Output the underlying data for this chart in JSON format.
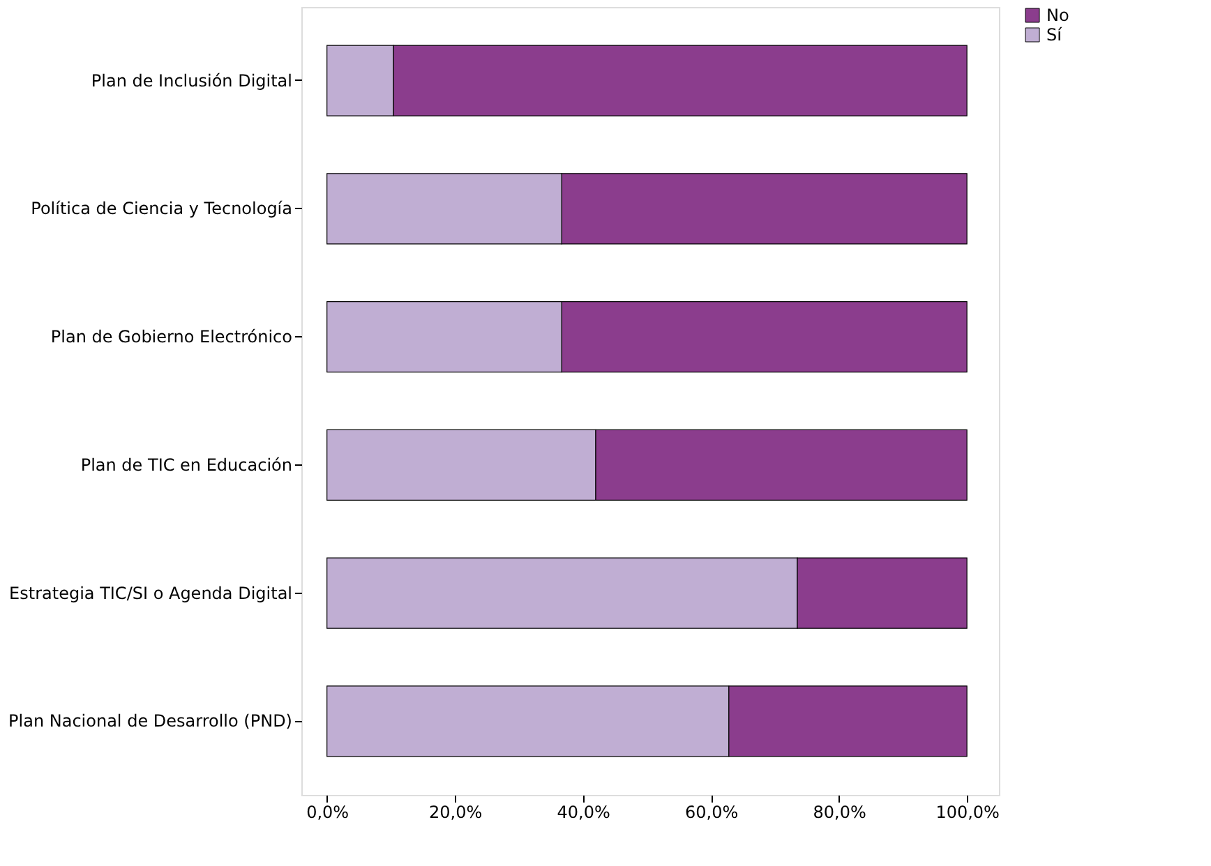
{
  "chart_data": {
    "type": "bar",
    "orientation": "horizontal",
    "stacked": true,
    "categories": [
      "Plan de Inclusión Digital",
      "Política de Ciencia y Tecnología",
      "Plan de Gobierno Electrónico",
      "Plan de TIC en Educación",
      "Estrategia TIC/SI o Agenda Digital",
      "Plan Nacional de Desarrollo (PND)"
    ],
    "series": [
      {
        "name": "Sí",
        "color": "#c0aed3",
        "values": [
          10.4,
          36.7,
          36.7,
          42.0,
          73.5,
          62.8
        ]
      },
      {
        "name": "No",
        "color": "#8b3d8d",
        "values": [
          89.6,
          63.3,
          63.3,
          58.0,
          26.5,
          37.2
        ]
      }
    ],
    "xlim": [
      -4,
      105
    ],
    "xticks": [
      {
        "value": 0,
        "label": "0,0%"
      },
      {
        "value": 20,
        "label": "20,0%"
      },
      {
        "value": 40,
        "label": "40,0%"
      },
      {
        "value": 60,
        "label": "60,0%"
      },
      {
        "value": 80,
        "label": "80,0%"
      },
      {
        "value": 100,
        "label": "100,0%"
      }
    ],
    "grid": false,
    "legend": "top right"
  }
}
